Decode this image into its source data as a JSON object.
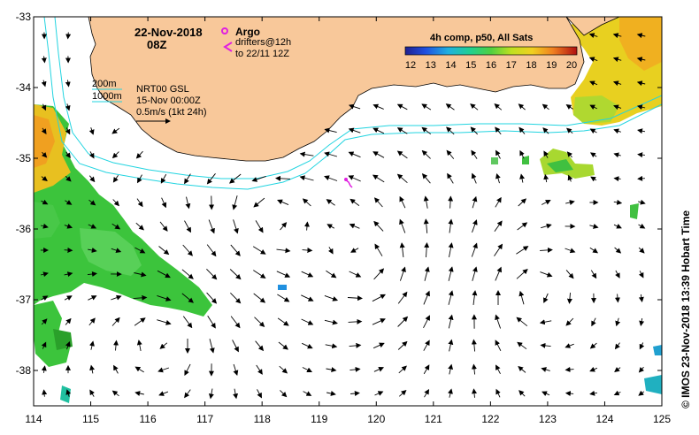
{
  "map": {
    "title_date": "22-Nov-2018",
    "title_time": "08Z",
    "argo_label": "Argo",
    "drifters_label": "drifters@12h",
    "drifters_to_label": "to 22/11 12Z",
    "contour_200": "200m",
    "contour_1000": "1000m",
    "product_name": "NRT00 GSL",
    "product_date": "15-Nov 00:00Z",
    "velocity_scale": "0.5m/s (1kt 24h)",
    "colorbar_title": "4h comp, p50, All Sats",
    "colorbar_ticks": [
      "12",
      "13",
      "14",
      "15",
      "16",
      "17",
      "18",
      "19",
      "20"
    ],
    "lon_ticks": [
      "114",
      "115",
      "116",
      "117",
      "118",
      "119",
      "120",
      "121",
      "122",
      "123",
      "124",
      "125"
    ],
    "lat_ticks": [
      "-33",
      "-34",
      "-35",
      "-36",
      "-37",
      "-38"
    ],
    "credit": "© IMOS 23-Nov-2018 13:39 Hobart Time",
    "colors": {
      "land": "#f8c89a",
      "shelf_contour": "#22d4e0",
      "argo_drifter": "#e020e0",
      "sst_green": "#3cc43c",
      "sst_yellow": "#e8e020",
      "sst_orange": "#f0a020"
    }
  }
}
